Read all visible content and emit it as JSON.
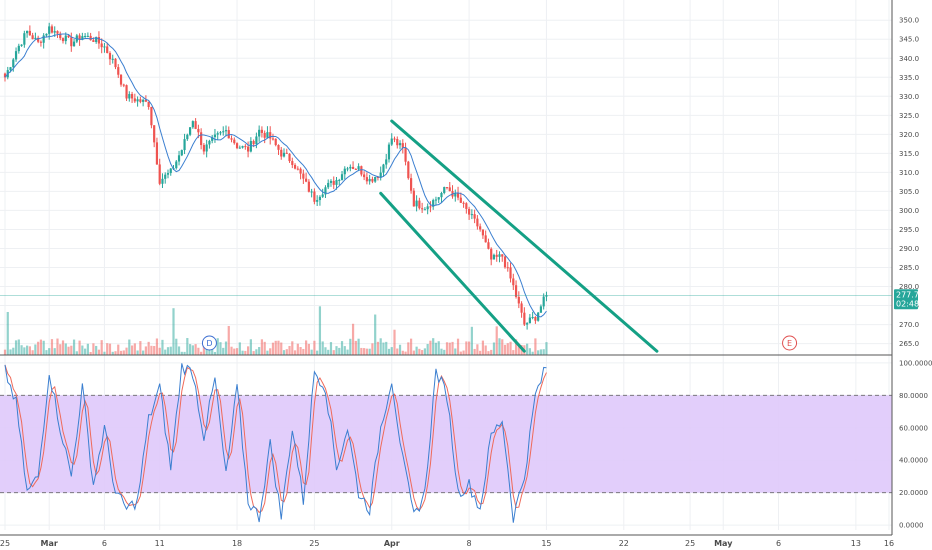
{
  "chart_data": [
    {
      "type": "candlestick",
      "ylim": [
        262,
        354
      ],
      "yticks": [
        "350.0",
        "345.0",
        "340.0",
        "335.0",
        "330.0",
        "325.0",
        "320.0",
        "315.0",
        "310.0",
        "305.0",
        "300.0",
        "295.0",
        "290.0",
        "285.0",
        "280.0",
        "275.0",
        "270.0",
        "265.0"
      ],
      "x_tick_labels": [
        {
          "day": 0,
          "label": "25",
          "bold": false
        },
        {
          "day": 4,
          "label": "Mar",
          "bold": true
        },
        {
          "day": 9,
          "label": "6",
          "bold": false
        },
        {
          "day": 14,
          "label": "11",
          "bold": false
        },
        {
          "day": 21,
          "label": "18",
          "bold": false
        },
        {
          "day": 28,
          "label": "25",
          "bold": false
        },
        {
          "day": 35,
          "label": "Apr",
          "bold": true
        },
        {
          "day": 42,
          "label": "8",
          "bold": false
        },
        {
          "day": 49,
          "label": "15",
          "bold": false
        },
        {
          "day": 56,
          "label": "22",
          "bold": false
        },
        {
          "day": 62,
          "label": "25",
          "bold": false
        },
        {
          "day": 65,
          "label": "May",
          "bold": true
        },
        {
          "day": 70,
          "label": "6",
          "bold": false
        },
        {
          "day": 77,
          "label": "13",
          "bold": false
        },
        {
          "day": 80,
          "label": "16",
          "bold": false
        }
      ],
      "close_points": [
        {
          "day": 0,
          "close": 335
        },
        {
          "day": 1,
          "close": 342
        },
        {
          "day": 2,
          "close": 347
        },
        {
          "day": 3,
          "close": 344
        },
        {
          "day": 4,
          "close": 348
        },
        {
          "day": 5,
          "close": 346
        },
        {
          "day": 6,
          "close": 344
        },
        {
          "day": 7,
          "close": 346
        },
        {
          "day": 8,
          "close": 345
        },
        {
          "day": 9,
          "close": 343
        },
        {
          "day": 10,
          "close": 338
        },
        {
          "day": 11,
          "close": 330
        },
        {
          "day": 12,
          "close": 329
        },
        {
          "day": 13,
          "close": 328
        },
        {
          "day": 14,
          "close": 308
        },
        {
          "day": 15,
          "close": 310
        },
        {
          "day": 16,
          "close": 316
        },
        {
          "day": 17,
          "close": 324
        },
        {
          "day": 18,
          "close": 316
        },
        {
          "day": 19,
          "close": 319
        },
        {
          "day": 20,
          "close": 321
        },
        {
          "day": 21,
          "close": 317
        },
        {
          "day": 22,
          "close": 316
        },
        {
          "day": 23,
          "close": 321
        },
        {
          "day": 24,
          "close": 319
        },
        {
          "day": 25,
          "close": 315
        },
        {
          "day": 26,
          "close": 313
        },
        {
          "day": 27,
          "close": 308
        },
        {
          "day": 28,
          "close": 303
        },
        {
          "day": 29,
          "close": 306
        },
        {
          "day": 30,
          "close": 308
        },
        {
          "day": 31,
          "close": 312
        },
        {
          "day": 32,
          "close": 311
        },
        {
          "day": 33,
          "close": 308
        },
        {
          "day": 34,
          "close": 310
        },
        {
          "day": 35,
          "close": 319
        },
        {
          "day": 36,
          "close": 316
        },
        {
          "day": 37,
          "close": 302
        },
        {
          "day": 38,
          "close": 301
        },
        {
          "day": 39,
          "close": 303
        },
        {
          "day": 40,
          "close": 306
        },
        {
          "day": 41,
          "close": 303
        },
        {
          "day": 42,
          "close": 299
        },
        {
          "day": 43,
          "close": 295
        },
        {
          "day": 44,
          "close": 287
        },
        {
          "day": 45,
          "close": 288
        },
        {
          "day": 46,
          "close": 280
        },
        {
          "day": 47,
          "close": 270
        },
        {
          "day": 48,
          "close": 272
        },
        {
          "day": 49,
          "close": 277.7
        }
      ],
      "last_price": "277.7",
      "countdown": "02:48",
      "channel": {
        "upper": [
          {
            "day": 35,
            "price": 323.5
          },
          {
            "day": 59,
            "price": 263
          }
        ],
        "lower": [
          {
            "day": 34,
            "price": 304.5
          },
          {
            "day": 47,
            "price": 263
          }
        ]
      },
      "markers": [
        {
          "day": 18.5,
          "label": "D",
          "color": "#3d6fd1"
        },
        {
          "day": 71,
          "label": "E",
          "color": "#e05050"
        }
      ],
      "colors": {
        "up": "#26a69a",
        "down": "#ef5350",
        "channel": "#14a085",
        "ma": "#3b7fd0"
      }
    },
    {
      "type": "line",
      "name": "stochastic",
      "ylim": [
        -3,
        103
      ],
      "yticks": [
        "100.0000",
        "80.0000",
        "60.0000",
        "40.0000",
        "20.0000",
        "0.0000"
      ],
      "bands": [
        20,
        80
      ],
      "k_points": [
        [
          0,
          95
        ],
        [
          1,
          75
        ],
        [
          2,
          20
        ],
        [
          3,
          30
        ],
        [
          4,
          95
        ],
        [
          5,
          60
        ],
        [
          6,
          30
        ],
        [
          7,
          85
        ],
        [
          8,
          25
        ],
        [
          9,
          60
        ],
        [
          10,
          20
        ],
        [
          11,
          10
        ],
        [
          12,
          15
        ],
        [
          13,
          65
        ],
        [
          14,
          85
        ],
        [
          15,
          35
        ],
        [
          16,
          98
        ],
        [
          17,
          94
        ],
        [
          18,
          55
        ],
        [
          19,
          90
        ],
        [
          20,
          30
        ],
        [
          21,
          85
        ],
        [
          22,
          15
        ],
        [
          23,
          5
        ],
        [
          24,
          50
        ],
        [
          25,
          5
        ],
        [
          26,
          60
        ],
        [
          27,
          15
        ],
        [
          28,
          95
        ],
        [
          29,
          85
        ],
        [
          30,
          35
        ],
        [
          31,
          60
        ],
        [
          32,
          20
        ],
        [
          33,
          10
        ],
        [
          34,
          60
        ],
        [
          35,
          90
        ],
        [
          36,
          40
        ],
        [
          37,
          5
        ],
        [
          38,
          20
        ],
        [
          39,
          95
        ],
        [
          40,
          80
        ],
        [
          41,
          20
        ],
        [
          42,
          25
        ],
        [
          43,
          10
        ],
        [
          44,
          55
        ],
        [
          45,
          65
        ],
        [
          46,
          5
        ],
        [
          47,
          30
        ],
        [
          48,
          80
        ],
        [
          49,
          98
        ]
      ],
      "colors": {
        "k": "#3b7fd0",
        "d": "#ef6a5a",
        "band": "#dfc9fb"
      }
    }
  ]
}
